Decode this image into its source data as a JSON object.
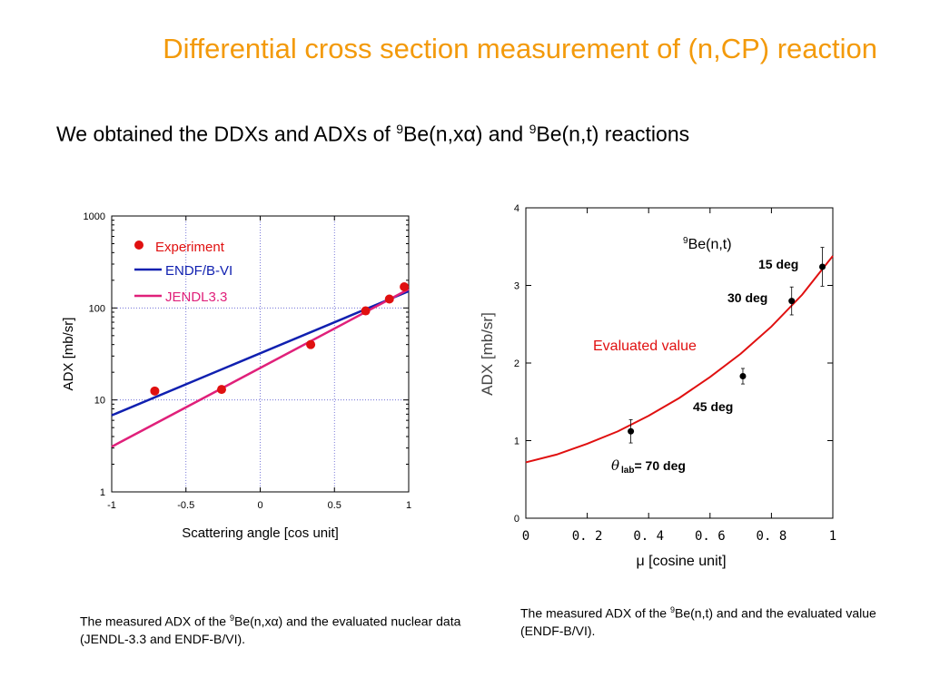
{
  "slide": {
    "title": "Differential cross section measurement of (n,CP) reaction",
    "subtitle": {
      "prefix": "We obtained the DDXs and ADXs of ",
      "sup1": "9",
      "part1": "Be(n,xα) and ",
      "sup2": "9",
      "part2": "Be(n,t) reactions"
    }
  },
  "captions": {
    "left": {
      "prefix": "The measured ADX of the ",
      "sup": "9",
      "rest": "Be(n,xα) and the evaluated nuclear data (JENDL-3.3 and ENDF-B/VI)."
    },
    "right": {
      "prefix": "The measured ADX of the ",
      "sup": "9",
      "rest": "Be(n,t) and and the evaluated value (ENDF-B/VI)."
    }
  },
  "chart_data": [
    {
      "type": "scatter",
      "title": "",
      "xlabel": "Scattering angle [cos unit]",
      "ylabel": "ADX [mb/sr]",
      "xlim": [
        -1,
        1
      ],
      "ylim": [
        1,
        1000
      ],
      "yscale": "log",
      "xticks": [
        "-1",
        "-0.5",
        "0",
        "0.5",
        "1"
      ],
      "yticks": [
        "1",
        "10",
        "100",
        "1000"
      ],
      "grid": true,
      "legend_position": "top-left",
      "series": [
        {
          "name": "Experiment",
          "kind": "points",
          "color": "#e01010",
          "x": [
            -0.71,
            -0.26,
            0.34,
            0.71,
            0.87,
            0.97
          ],
          "y": [
            12.5,
            13,
            40,
            93,
            125,
            170
          ]
        },
        {
          "name": "ENDF/B-VI",
          "kind": "line",
          "color": "#1020b0",
          "x": [
            -1,
            1
          ],
          "y": [
            6.8,
            152
          ]
        },
        {
          "name": "JENDL3.3",
          "kind": "line",
          "color": "#e0207a",
          "x": [
            -1,
            1
          ],
          "y": [
            3.1,
            160
          ]
        }
      ]
    },
    {
      "type": "scatter",
      "title": "",
      "xlabel": "μ [cosine unit]",
      "ylabel": "ADX [mb/sr]",
      "xlim": [
        0,
        1
      ],
      "ylim": [
        0,
        4
      ],
      "xticks": [
        "0",
        "0. 2",
        "0. 4",
        "0. 6",
        "0. 8",
        "1"
      ],
      "yticks": [
        "0",
        "1",
        "2",
        "3",
        "4"
      ],
      "grid": false,
      "annotations": {
        "reaction": {
          "sup": "9",
          "text": "Be(n,t)"
        },
        "curve_label": "Evaluated value",
        "theta_symbol": "θ",
        "theta_sub": "lab",
        "theta_rest": "= 70 deg",
        "deg45": "45 deg",
        "deg30": "30 deg",
        "deg15": "15 deg"
      },
      "series": [
        {
          "name": "",
          "kind": "points",
          "color": "#000000",
          "x": [
            0.342,
            0.707,
            0.866,
            0.966
          ],
          "y": [
            1.12,
            1.83,
            2.8,
            3.24
          ],
          "err": [
            0.15,
            0.1,
            0.18,
            0.25
          ]
        },
        {
          "name": "Evaluated value",
          "kind": "line",
          "color": "#e01010",
          "x": [
            0,
            0.1,
            0.2,
            0.3,
            0.4,
            0.5,
            0.6,
            0.7,
            0.8,
            0.9,
            1.0
          ],
          "y": [
            0.72,
            0.82,
            0.96,
            1.12,
            1.32,
            1.55,
            1.82,
            2.12,
            2.47,
            2.88,
            3.38
          ]
        }
      ]
    }
  ]
}
